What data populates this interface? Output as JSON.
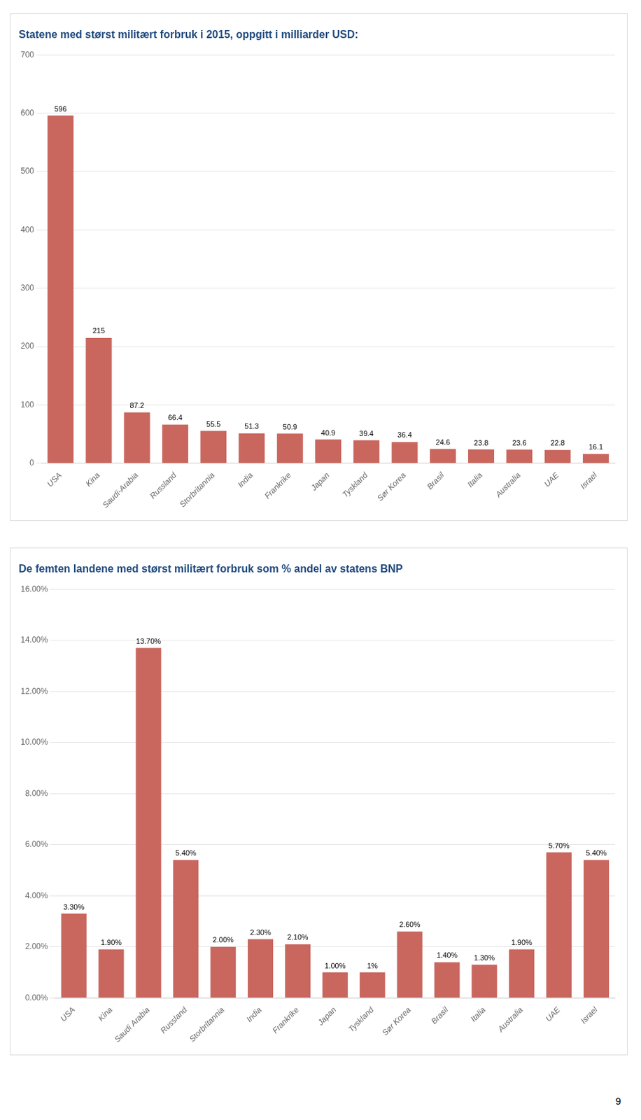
{
  "chart_data": [
    {
      "type": "bar",
      "title": "Statene med størst militært forbruk i 2015, oppgitt i milliarder USD:",
      "categories": [
        "USA",
        "Kina",
        "Saudi-Arabia",
        "Russland",
        "Storbritannia",
        "India",
        "Frankrike",
        "Japan",
        "Tyskland",
        "Sør Korea",
        "Brasil",
        "Italia",
        "Australia",
        "UAE",
        "Israel"
      ],
      "values": [
        596,
        215,
        87.2,
        66.4,
        55.5,
        51.3,
        50.9,
        40.9,
        39.4,
        36.4,
        24.6,
        23.8,
        23.6,
        22.8,
        16.1
      ],
      "color": "#C9665E",
      "ylim": [
        0,
        700
      ],
      "yticks": [
        0,
        100,
        200,
        300,
        400,
        500,
        600,
        700
      ],
      "grid": true,
      "data_labels": true
    },
    {
      "type": "bar",
      "title": "De femten landene med størst militært forbruk som % andel av statens BNP",
      "categories": [
        "USA",
        "Kina",
        "Saudi Arabia",
        "Russland",
        "Storbritannia",
        "India",
        "Frankrike",
        "Japan",
        "Tyskland",
        "Sør Korea",
        "Brasil",
        "Italia",
        "Australia",
        "UAE",
        "Israel"
      ],
      "values": [
        3.3,
        1.9,
        13.7,
        5.4,
        2.0,
        2.3,
        2.1,
        1.0,
        1.0,
        2.6,
        1.4,
        1.3,
        1.9,
        5.7,
        5.4
      ],
      "value_labels": [
        "3.30%",
        "1.90%",
        "13.70%",
        "5.40%",
        "2.00%",
        "2.30%",
        "2.10%",
        "1.00%",
        "1%",
        "2.60%",
        "1.40%",
        "1.30%",
        "1.90%",
        "5.70%",
        "5.40%"
      ],
      "color": "#C9665E",
      "ylim": [
        0,
        16
      ],
      "yticks": [
        {
          "value": 0,
          "label": "0.00%"
        },
        {
          "value": 2,
          "label": "2.00%"
        },
        {
          "value": 4,
          "label": "4.00%"
        },
        {
          "value": 6,
          "label": "6.00%"
        },
        {
          "value": 8,
          "label": "8.00%"
        },
        {
          "value": 10,
          "label": "10.00%"
        },
        {
          "value": 12,
          "label": "12.00%"
        },
        {
          "value": 14,
          "label": "14.00%"
        },
        {
          "value": 16,
          "label": "16.00%"
        }
      ],
      "grid": true,
      "data_labels": true,
      "annotations": [
        "9"
      ]
    }
  ]
}
